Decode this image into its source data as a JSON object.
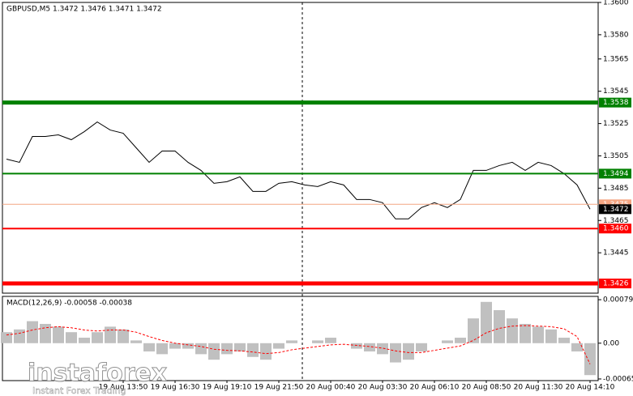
{
  "chart_data": [
    {
      "type": "line",
      "title": "GBPUSD,M5  1.3472 1.3476 1.3471 1.3472",
      "color": "#000000",
      "categories": [
        null,
        null,
        null,
        null,
        null,
        null,
        null,
        null,
        null,
        "19 Aug 13:50",
        null,
        null,
        null,
        "19 Aug 16:30",
        null,
        null,
        null,
        "19 Aug 19:10",
        null,
        null,
        null,
        "19 Aug 21:50",
        null,
        null,
        null,
        "20 Aug 00:40",
        null,
        null,
        null,
        "20 Aug 03:30",
        null,
        null,
        null,
        "20 Aug 06:10",
        null,
        null,
        null,
        "20 Aug 08:50",
        null,
        null,
        null,
        "20 Aug 11:30",
        null,
        null,
        null,
        "20 Aug 14:10"
      ],
      "values": [
        1.3503,
        1.3501,
        1.3517,
        1.3517,
        1.3518,
        1.3515,
        1.352,
        1.3526,
        1.3521,
        1.3519,
        1.351,
        1.3501,
        1.3508,
        1.3508,
        1.3501,
        1.3496,
        1.3488,
        1.3489,
        1.3492,
        1.3483,
        1.3483,
        1.3488,
        1.3489,
        1.3487,
        1.3486,
        1.3489,
        1.3487,
        1.3478,
        1.3478,
        1.3476,
        1.3466,
        1.3466,
        1.3473,
        1.3476,
        1.3473,
        1.3478,
        1.3496,
        1.3496,
        1.3499,
        1.3501,
        1.3496,
        1.3501,
        1.3499,
        1.3494,
        1.3487,
        1.3472
      ],
      "ylim": [
        1.342,
        1.36
      ],
      "yticks": [
        {
          "value": 1.36,
          "label": "1.3600"
        },
        {
          "value": 1.358,
          "label": "1.3580"
        },
        1.3565,
        1.3545,
        1.3525,
        1.3505,
        1.3485,
        1.3465,
        1.3445
      ],
      "levels": [
        {
          "value": 1.3538,
          "color": "#008000",
          "width": 5
        },
        {
          "value": 1.3494,
          "color": "#008000",
          "width": 2
        },
        {
          "value": 1.3475,
          "color": "#f4a582",
          "width": 1
        },
        {
          "value": 1.3472,
          "color": "#000000",
          "width": 0
        },
        {
          "value": 1.346,
          "label": "1.3460",
          "color": "#ff0000",
          "width": 2
        },
        {
          "value": 1.3426,
          "color": "#ff0000",
          "width": 5
        }
      ],
      "watermark": "instaforex",
      "watermark_subtitle": "Instant Forex Trading"
    },
    {
      "type": "macd",
      "title": "MACD(12,26,9) -0.00058 -0.00038",
      "color": "#c0c0c0",
      "signal_color": "#ff0000",
      "values": [
        0.0002,
        0.00025,
        0.0004,
        0.00035,
        0.0003,
        0.0002,
        0.0001,
        0.0002,
        0.0003,
        0.00025,
        5e-05,
        -0.00015,
        -0.0002,
        -0.0001,
        -0.0001,
        -0.0002,
        -0.0003,
        -0.0002,
        -0.00015,
        -0.00025,
        -0.0003,
        -0.0001,
        5e-05,
        0,
        5e-05,
        0.0001,
        0,
        -0.0001,
        -0.00015,
        -0.0002,
        -0.00035,
        -0.0003,
        -0.00015,
        0,
        5e-05,
        0.0001,
        0.00045,
        0.00075,
        0.0006,
        0.00045,
        0.00035,
        0.0003,
        0.00025,
        0.0001,
        -0.00015,
        -0.00058
      ],
      "signal": [
        0.00015,
        0.00018,
        0.00024,
        0.00028,
        0.0003,
        0.00028,
        0.00024,
        0.00022,
        0.00024,
        0.00024,
        0.0002,
        0.00012,
        5e-05,
        0,
        -3e-05,
        -6e-05,
        -0.00011,
        -0.00013,
        -0.00014,
        -0.00016,
        -0.00019,
        -0.00017,
        -0.00012,
        -9e-05,
        -6e-05,
        -3e-05,
        -2e-05,
        -4e-05,
        -6e-05,
        -9e-05,
        -0.00014,
        -0.00017,
        -0.00017,
        -0.00013,
        -9e-05,
        -5e-05,
        5e-05,
        0.00019,
        0.00027,
        0.00031,
        0.00032,
        0.00031,
        0.0003,
        0.00026,
        0.00012,
        -0.00038
      ],
      "ylim": [
        -0.00068,
        0.00085
      ],
      "yticks": [
        0.00079,
        {
          "value": 0,
          "label": "0.00"
        },
        -0.00065
      ]
    }
  ]
}
